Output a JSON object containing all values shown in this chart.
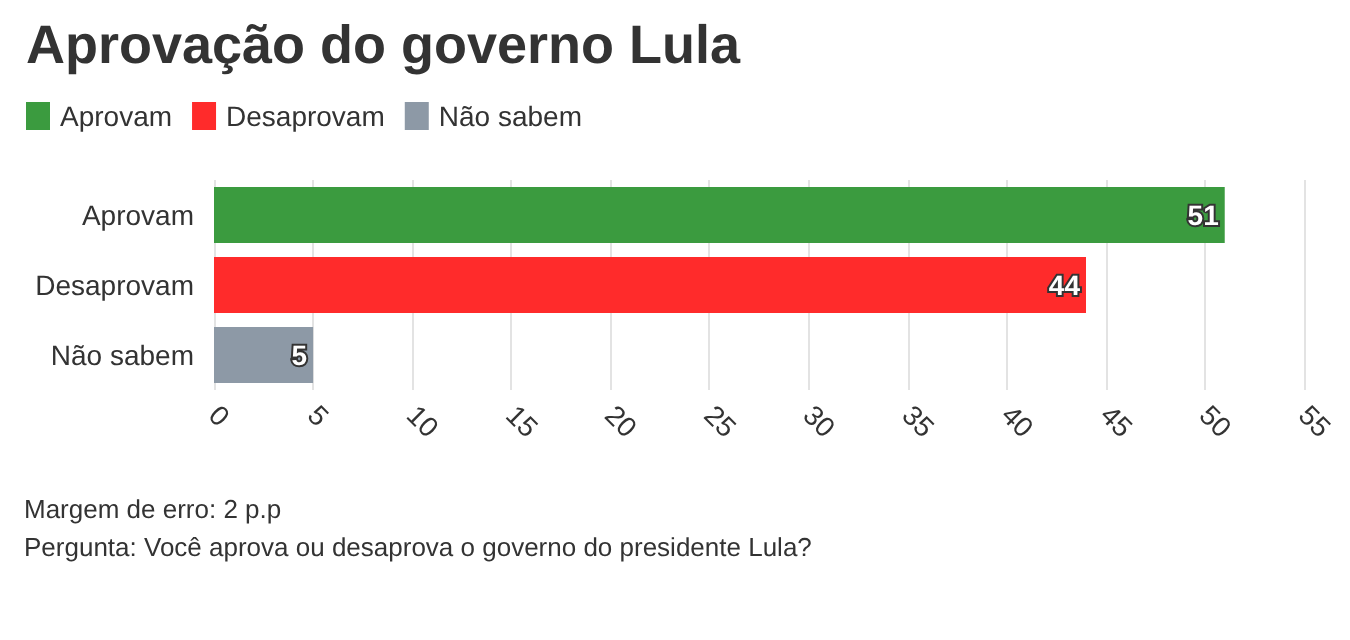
{
  "chart_data": {
    "type": "bar",
    "orientation": "horizontal",
    "title": "Aprovação do governo Lula",
    "categories": [
      "Aprovam",
      "Desaprovam",
      "Não sabem"
    ],
    "series": [
      {
        "name": "Aprovam",
        "color": "#3b9b3f",
        "values": [
          51,
          null,
          null
        ]
      },
      {
        "name": "Desaprovam",
        "color": "#ff2b2b",
        "values": [
          null,
          44,
          null
        ]
      },
      {
        "name": "Não sabem",
        "color": "#8d99a6",
        "values": [
          null,
          null,
          5
        ]
      }
    ],
    "xlim": [
      0,
      55
    ],
    "xticks": [
      0,
      5,
      10,
      15,
      20,
      25,
      30,
      35,
      40,
      45,
      50,
      55
    ],
    "grid": "x",
    "legend": "top left",
    "data_labels": true,
    "annotations": [
      "Margem de erro: 2 p.p",
      "Pergunta: Você aprova ou desaprova o governo do presidente Lula?"
    ]
  }
}
